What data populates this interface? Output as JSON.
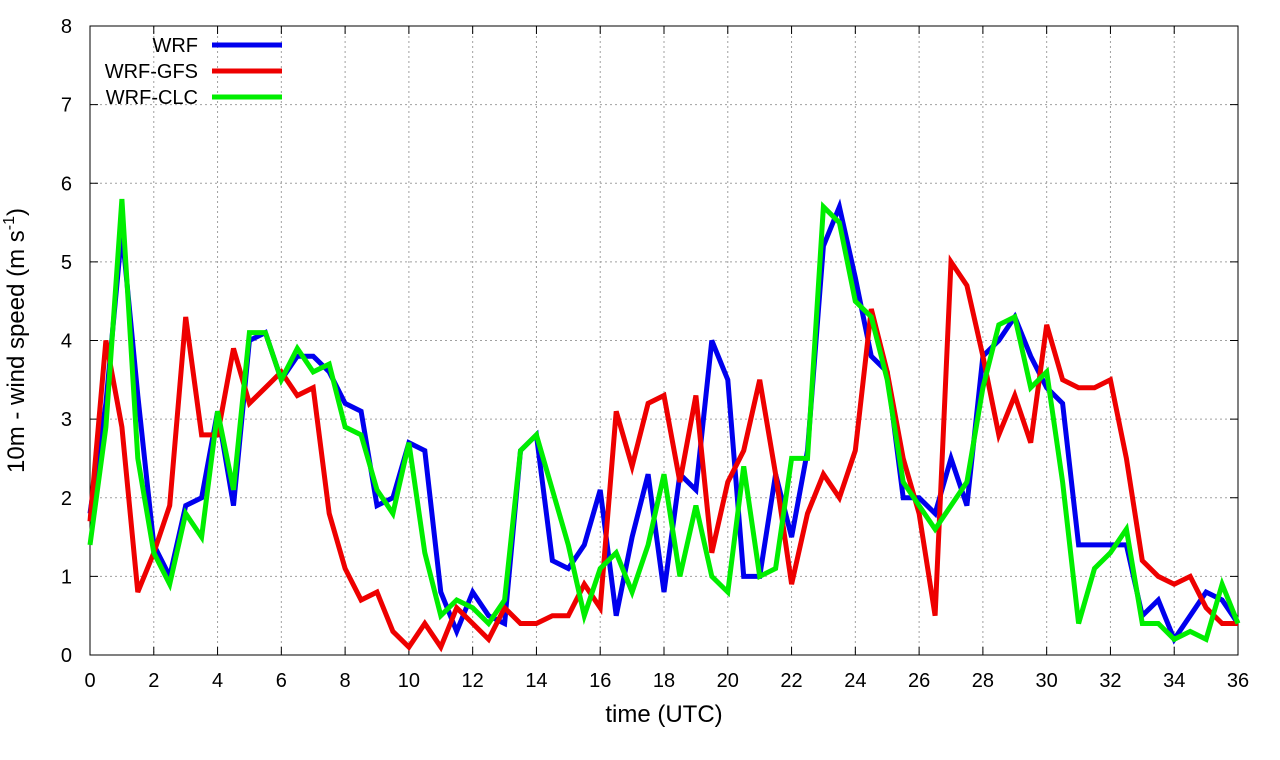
{
  "chart_data": {
    "type": "line",
    "xlabel": "time (UTC)",
    "ylabel_main": "10m - wind speed  (m s",
    "ylabel_sup": "-1",
    "ylabel_end": ")",
    "xlim": [
      0,
      36
    ],
    "ylim": [
      0,
      8
    ],
    "xticks": [
      0,
      2,
      4,
      6,
      8,
      10,
      12,
      14,
      16,
      18,
      20,
      22,
      24,
      26,
      28,
      30,
      32,
      34,
      36
    ],
    "yticks": [
      0,
      1,
      2,
      3,
      4,
      5,
      6,
      7,
      8
    ],
    "grid": true,
    "legend_position": "top-left",
    "x": [
      0,
      0.5,
      1,
      1.5,
      2,
      2.5,
      3,
      3.5,
      4,
      4.5,
      5,
      5.5,
      6,
      6.5,
      7,
      7.5,
      8,
      8.5,
      9,
      9.5,
      10,
      10.5,
      11,
      11.5,
      12,
      12.5,
      13,
      13.5,
      14,
      14.5,
      15,
      15.5,
      16,
      16.5,
      17,
      17.5,
      18,
      18.5,
      19,
      19.5,
      20,
      20.5,
      21,
      21.5,
      22,
      22.5,
      23,
      23.5,
      24,
      24.5,
      25,
      25.5,
      26,
      26.5,
      27,
      27.5,
      28,
      28.5,
      29,
      29.5,
      30,
      30.5,
      31,
      31.5,
      32,
      32.5,
      33,
      33.5,
      34,
      34.5,
      35,
      35.5,
      36
    ],
    "series": [
      {
        "name": "WRF",
        "color": "#0000ee",
        "values": [
          1.8,
          3.2,
          5.4,
          3.3,
          1.4,
          1.0,
          1.9,
          2.0,
          3.1,
          1.9,
          4.0,
          4.1,
          3.5,
          3.8,
          3.8,
          3.6,
          3.2,
          3.1,
          1.9,
          2.0,
          2.7,
          2.6,
          0.8,
          0.3,
          0.8,
          0.5,
          0.4,
          2.6,
          2.8,
          1.2,
          1.1,
          1.4,
          2.1,
          0.5,
          1.5,
          2.3,
          0.8,
          2.3,
          2.1,
          4.0,
          3.5,
          1.0,
          1.0,
          2.3,
          1.5,
          2.6,
          5.2,
          5.7,
          4.8,
          3.8,
          3.6,
          2.0,
          2.0,
          1.8,
          2.5,
          1.9,
          3.8,
          4.0,
          4.3,
          3.8,
          3.4,
          3.2,
          1.4,
          1.4,
          1.4,
          1.4,
          0.5,
          0.7,
          0.2,
          0.5,
          0.8,
          0.7,
          0.4
        ]
      },
      {
        "name": "WRF-GFS",
        "color": "#ee0000",
        "values": [
          1.7,
          4.0,
          2.9,
          0.8,
          1.3,
          1.9,
          4.3,
          2.8,
          2.8,
          3.9,
          3.2,
          3.4,
          3.6,
          3.3,
          3.4,
          1.8,
          1.1,
          0.7,
          0.8,
          0.3,
          0.1,
          0.4,
          0.1,
          0.6,
          0.4,
          0.2,
          0.6,
          0.4,
          0.4,
          0.5,
          0.5,
          0.9,
          0.6,
          3.1,
          2.4,
          3.2,
          3.3,
          2.2,
          3.3,
          1.3,
          2.2,
          2.6,
          3.5,
          2.3,
          0.9,
          1.8,
          2.3,
          2.0,
          2.6,
          4.4,
          3.6,
          2.5,
          1.8,
          0.5,
          5.0,
          4.7,
          3.8,
          2.8,
          3.3,
          2.7,
          4.2,
          3.5,
          3.4,
          3.4,
          3.5,
          2.5,
          1.2,
          1.0,
          0.9,
          1.0,
          0.6,
          0.4,
          0.4
        ]
      },
      {
        "name": "WRF-CLC",
        "color": "#00ee00",
        "values": [
          1.4,
          2.9,
          5.8,
          2.5,
          1.3,
          0.9,
          1.8,
          1.5,
          3.1,
          2.1,
          4.1,
          4.1,
          3.5,
          3.9,
          3.6,
          3.7,
          2.9,
          2.8,
          2.1,
          1.8,
          2.7,
          1.3,
          0.5,
          0.7,
          0.6,
          0.4,
          0.7,
          2.6,
          2.8,
          2.1,
          1.4,
          0.5,
          1.1,
          1.3,
          0.8,
          1.4,
          2.3,
          1.0,
          1.9,
          1.0,
          0.8,
          2.4,
          1.0,
          1.1,
          2.5,
          2.5,
          5.7,
          5.5,
          4.5,
          4.3,
          3.5,
          2.2,
          1.9,
          1.6,
          1.9,
          2.2,
          3.4,
          4.2,
          4.3,
          3.4,
          3.6,
          2.2,
          0.4,
          1.1,
          1.3,
          1.6,
          0.4,
          0.4,
          0.2,
          0.3,
          0.2,
          0.9,
          0.4
        ]
      }
    ]
  }
}
